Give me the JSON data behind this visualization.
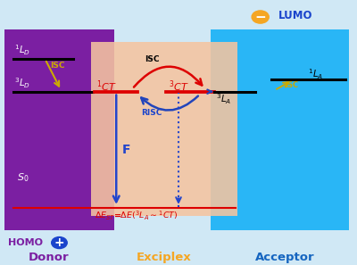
{
  "bg_color": "#d0e8f5",
  "donor_color": "#7b1fa2",
  "exciplex_color": "#f5c4a0",
  "acceptor_color": "#29b6f6",
  "fig_width": 4.0,
  "fig_height": 2.97,
  "donor_label": "Donor",
  "exciplex_label": "Exciplex",
  "acceptor_label": "Acceptor",
  "homo_label": "HOMO",
  "lumo_label": "LUMO",
  "donor_label_color": "#7b1fa2",
  "exciplex_label_color": "#f5a623",
  "acceptor_label_color": "#1565c0",
  "white": "#ffffff",
  "black": "#000000",
  "red": "#dd0000",
  "blue_arrow": "#2244cc",
  "yellow": "#ccaa00"
}
